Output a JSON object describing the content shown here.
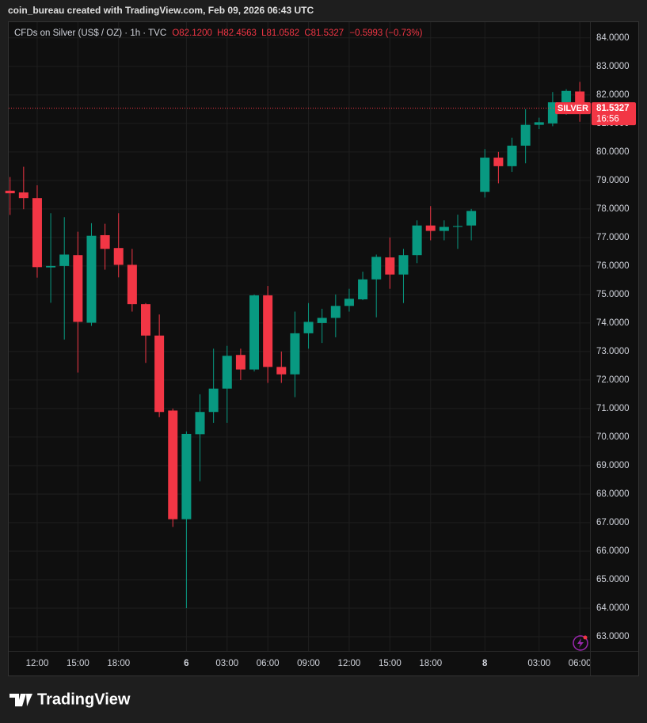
{
  "header": {
    "credit": "coin_bureau created with TradingView.com, Feb 09, 2026 06:43 UTC",
    "symbol": "CFDs on Silver (US$ / OZ) · 1h · TVC",
    "open": "O82.1200",
    "high": "H82.4563",
    "low": "L81.0582",
    "close": "C81.5327",
    "change": "−0.5993 (−0.73%)"
  },
  "footer": {
    "brand": "TradingView"
  },
  "chart_data": {
    "type": "candlestick",
    "up_color": "#089981",
    "down_color": "#f23645",
    "grid": true,
    "categories": [
      null,
      null,
      "12:00",
      null,
      null,
      "15:00",
      null,
      null,
      "18:00",
      null,
      null,
      null,
      null,
      "6",
      null,
      null,
      "03:00",
      null,
      null,
      "06:00",
      null,
      null,
      "09:00",
      null,
      null,
      "12:00",
      null,
      null,
      "15:00",
      null,
      null,
      "18:00",
      null,
      null,
      null,
      "8",
      null,
      null,
      null,
      "03:00",
      null,
      null,
      "06:00"
    ],
    "open": [
      78.64,
      78.58,
      78.38,
      75.95,
      76.0,
      76.38,
      74.01,
      77.08,
      76.63,
      76.04,
      74.66,
      73.56,
      70.93,
      67.12,
      70.1,
      70.88,
      71.7,
      72.88,
      72.37,
      74.97,
      72.46,
      72.2,
      73.64,
      74.0,
      74.18,
      74.6,
      74.83,
      75.53,
      76.3,
      75.7,
      76.38,
      77.42,
      77.23,
      77.37,
      77.42,
      78.6,
      79.8,
      79.5,
      80.22,
      80.95,
      81.0,
      81.74,
      82.12
    ],
    "high": [
      79.12,
      79.48,
      78.83,
      77.85,
      77.71,
      77.2,
      77.5,
      77.48,
      77.85,
      76.6,
      74.7,
      74.3,
      71.0,
      70.2,
      71.5,
      73.1,
      73.2,
      73.1,
      75.0,
      75.3,
      73.0,
      74.4,
      74.7,
      74.5,
      75.0,
      75.2,
      75.8,
      76.4,
      77.0,
      76.6,
      77.6,
      78.1,
      77.6,
      77.8,
      78.0,
      80.1,
      80.0,
      80.5,
      81.5,
      81.2,
      82.1,
      82.2,
      82.4563
    ],
    "low": [
      77.79,
      77.99,
      75.59,
      74.71,
      73.42,
      72.26,
      73.9,
      75.87,
      75.6,
      74.4,
      72.6,
      70.7,
      66.85,
      64.0,
      68.45,
      70.5,
      70.5,
      72.0,
      72.3,
      71.9,
      71.9,
      71.4,
      73.1,
      73.3,
      73.5,
      74.4,
      74.8,
      74.2,
      75.2,
      74.7,
      76.1,
      76.9,
      76.9,
      76.6,
      76.9,
      78.4,
      78.9,
      79.3,
      79.6,
      80.8,
      80.9,
      81.3,
      81.0582
    ],
    "close": [
      78.55,
      78.38,
      75.96,
      76.0,
      76.4,
      74.04,
      77.06,
      76.6,
      76.04,
      74.66,
      73.56,
      70.88,
      67.12,
      70.11,
      70.88,
      71.7,
      72.85,
      72.37,
      74.97,
      72.46,
      72.2,
      73.64,
      74.04,
      74.18,
      74.6,
      74.85,
      75.53,
      76.32,
      75.7,
      76.38,
      77.42,
      77.23,
      77.37,
      77.4,
      77.93,
      79.8,
      79.5,
      80.22,
      80.95,
      81.04,
      81.74,
      82.14,
      81.5327
    ],
    "symbol_tag": "SILVER",
    "countdown": "16:56",
    "ylim": [
      62.5,
      84.55
    ],
    "yticks": [
      {
        "value": 63,
        "label": "63.0000"
      },
      {
        "value": 64,
        "label": "64.0000"
      },
      {
        "value": 65,
        "label": "65.0000"
      },
      {
        "value": 66,
        "label": "66.0000"
      },
      {
        "value": 67,
        "label": "67.0000"
      },
      {
        "value": 68,
        "label": "68.0000"
      },
      {
        "value": 69,
        "label": "69.0000"
      },
      {
        "value": 70,
        "label": "70.0000"
      },
      {
        "value": 71,
        "label": "71.0000"
      },
      {
        "value": 72,
        "label": "72.0000"
      },
      {
        "value": 73,
        "label": "73.0000"
      },
      {
        "value": 74,
        "label": "74.0000"
      },
      {
        "value": 75,
        "label": "75.0000"
      },
      {
        "value": 76,
        "label": "76.0000"
      },
      {
        "value": 77,
        "label": "77.0000"
      },
      {
        "value": 78,
        "label": "78.0000"
      },
      {
        "value": 79,
        "label": "79.0000"
      },
      {
        "value": 80,
        "label": "80.0000"
      },
      {
        "value": 81,
        "label": "81.0000"
      },
      {
        "value": 82,
        "label": "82.0000"
      },
      {
        "value": 83,
        "label": "83.0000"
      },
      {
        "value": 84,
        "label": "84.0000"
      }
    ]
  }
}
